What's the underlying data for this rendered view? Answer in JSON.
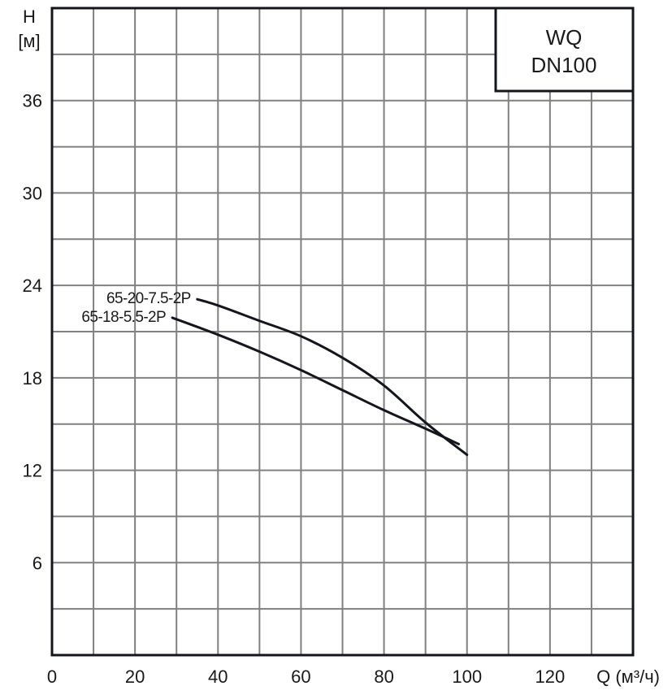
{
  "chart_data": {
    "type": "line",
    "title": "WQ DN100",
    "title_lines": [
      "WQ",
      "DN100"
    ],
    "xlabel": "Q (м³/ч)",
    "ylabel": "H [м]",
    "ylabel_lines": [
      "H",
      "[м]"
    ],
    "xlim": [
      0,
      140
    ],
    "ylim": [
      0,
      42
    ],
    "x_ticks": [
      0,
      20,
      40,
      60,
      80,
      100,
      120
    ],
    "x_tick_labels": [
      "0",
      "20",
      "40",
      "60",
      "80",
      "100",
      "120"
    ],
    "x_grid_step": 10,
    "y_ticks": [
      6,
      12,
      18,
      24,
      30,
      36
    ],
    "y_tick_labels": [
      "6",
      "12",
      "18",
      "24",
      "30",
      "36"
    ],
    "y_grid_step": 3,
    "grid": true,
    "legend_position": "inline labels at curve start",
    "series": [
      {
        "name": "65-20-7.5-2P",
        "x": [
          35,
          40,
          50,
          60,
          70,
          80,
          90,
          100
        ],
        "y": [
          23.1,
          22.7,
          21.7,
          20.7,
          19.3,
          17.5,
          15.1,
          13.0
        ]
      },
      {
        "name": "65-18-5.5-2P",
        "x": [
          29,
          40,
          50,
          60,
          70,
          80,
          90,
          98
        ],
        "y": [
          21.9,
          20.8,
          19.7,
          18.5,
          17.2,
          15.9,
          14.7,
          13.7
        ]
      }
    ]
  },
  "colors": {
    "axis": "#13161c",
    "grid": "#808080",
    "curve": "#13161c",
    "text": "#1a1a1a",
    "background": "#ffffff"
  }
}
